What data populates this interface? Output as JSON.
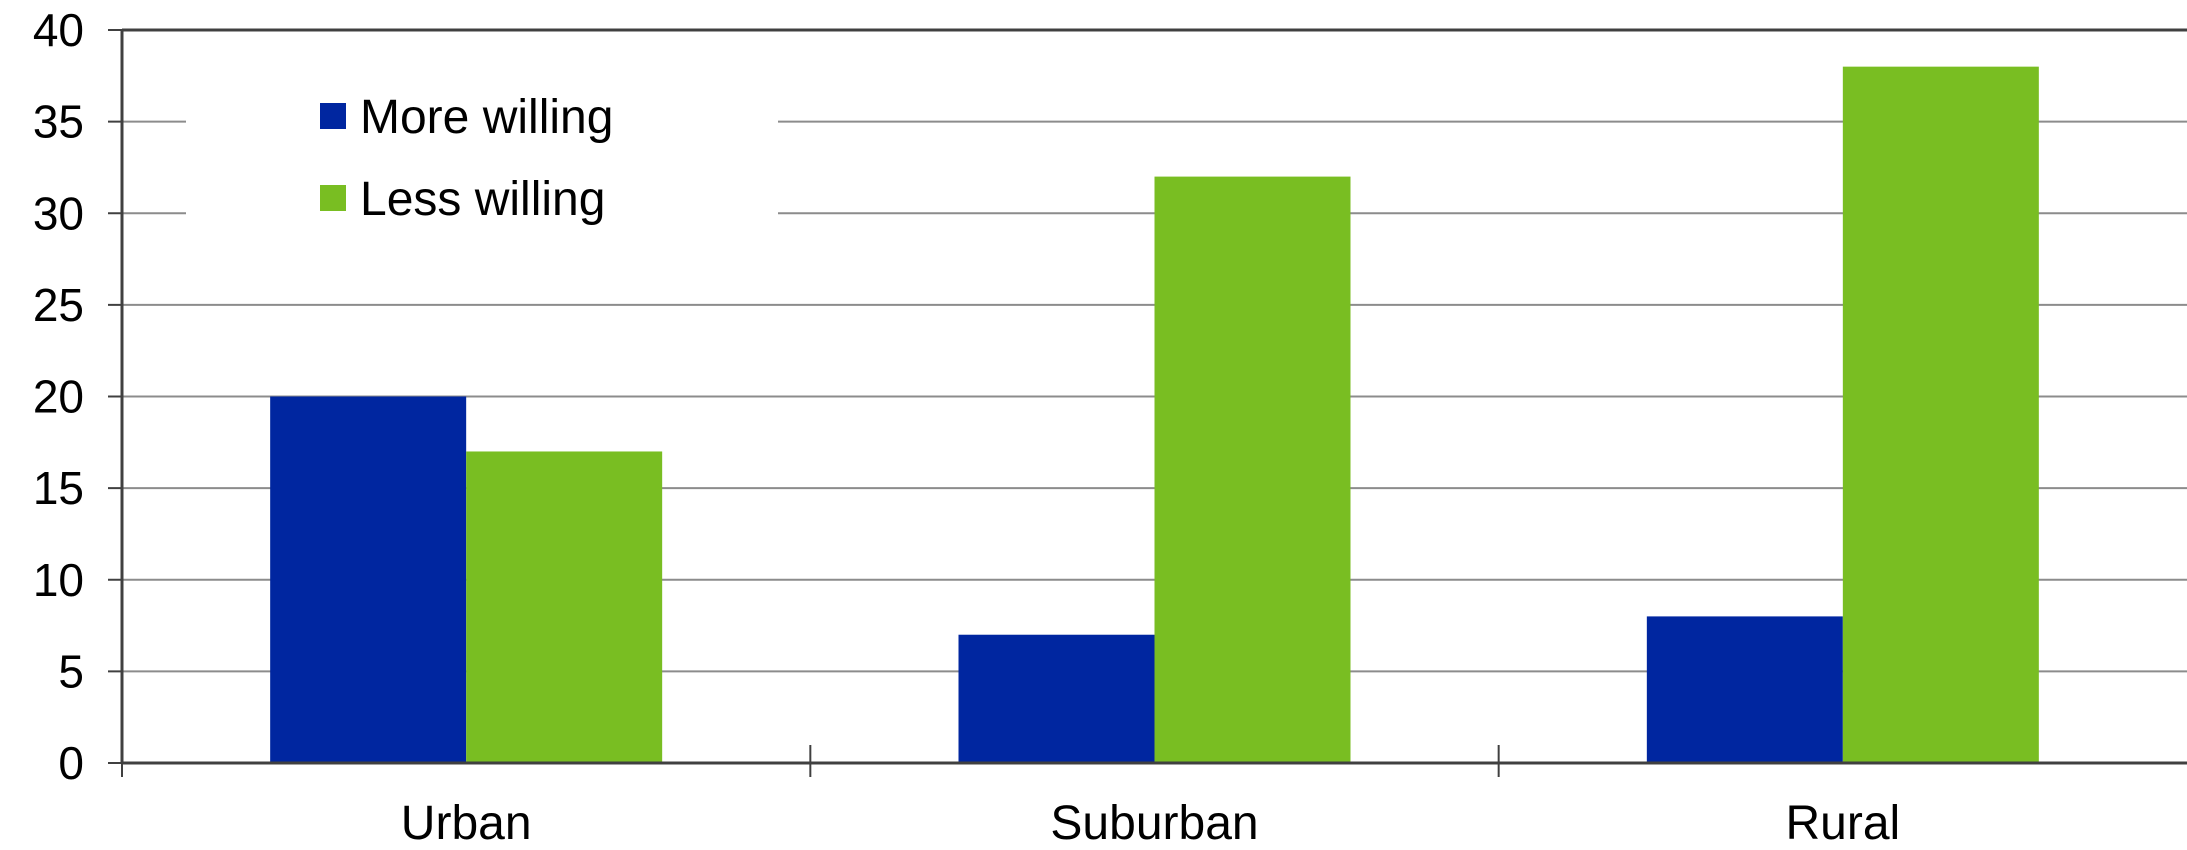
{
  "chart_data": {
    "type": "bar",
    "categories": [
      "Urban",
      "Suburban",
      "Rural"
    ],
    "series": [
      {
        "name": "More willing",
        "values": [
          20,
          7,
          8
        ],
        "color": "#0026A0"
      },
      {
        "name": "Less willing",
        "values": [
          17,
          32,
          38
        ],
        "color": "#79BE22"
      }
    ],
    "title": "",
    "xlabel": "",
    "ylabel": "",
    "ylim": [
      0,
      40
    ],
    "yticks": [
      0,
      5,
      10,
      15,
      20,
      25,
      30,
      35,
      40
    ],
    "grid": true,
    "legend_position": "top-left"
  }
}
